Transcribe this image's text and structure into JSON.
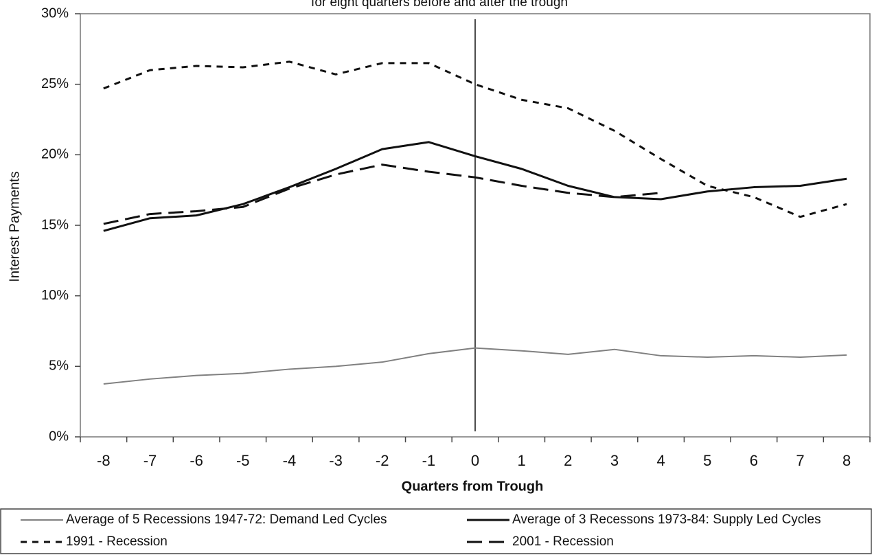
{
  "chart_data": {
    "type": "line",
    "subtitle": "for eight quarters before and after the trough",
    "xlabel": "Quarters from Trough",
    "ylabel": "Interest Payments",
    "categories": [
      "-8",
      "-7",
      "-6",
      "-5",
      "-4",
      "-3",
      "-2",
      "-1",
      "0",
      "1",
      "2",
      "3",
      "4",
      "5",
      "6",
      "7",
      "8"
    ],
    "series": [
      {
        "name": "Average of 5 Recessions 1947-72: Demand Led Cycles",
        "color": "#808080",
        "width": 2,
        "dash": "none",
        "values": [
          3.75,
          4.1,
          4.35,
          4.5,
          4.8,
          5.0,
          5.3,
          5.9,
          6.3,
          6.1,
          5.85,
          6.2,
          5.75,
          5.65,
          5.75,
          5.65,
          5.8
        ]
      },
      {
        "name": "Average of 3 Recessons 1973-84: Supply Led Cycles",
        "color": "#111111",
        "width": 3,
        "dash": "none",
        "values": [
          14.6,
          15.5,
          15.7,
          16.5,
          17.7,
          19.0,
          20.4,
          20.9,
          19.9,
          19.0,
          17.8,
          17.0,
          16.85,
          17.4,
          17.7,
          17.8,
          18.3
        ]
      },
      {
        "name": "1991 - Recession",
        "color": "#111111",
        "width": 3,
        "dash": "9,8",
        "values": [
          24.7,
          26.0,
          26.3,
          26.2,
          26.6,
          25.7,
          26.5,
          26.5,
          25.0,
          23.9,
          23.3,
          21.7,
          19.7,
          17.8,
          17.0,
          15.6,
          16.5
        ]
      },
      {
        "name": "2001 - Recession",
        "color": "#111111",
        "width": 3,
        "dash": "22,10",
        "values": [
          15.1,
          15.8,
          16.0,
          16.3,
          17.6,
          18.6,
          19.3,
          18.8,
          18.4,
          17.8,
          17.3,
          17.0,
          17.3,
          null,
          null,
          null,
          null
        ]
      }
    ],
    "ylim": [
      0,
      30
    ],
    "yticks": [
      {
        "value": 0,
        "label": "0%"
      },
      {
        "value": 5,
        "label": "5%"
      },
      {
        "value": 10,
        "label": "10%"
      },
      {
        "value": 15,
        "label": "15%"
      },
      {
        "value": 20,
        "label": "20%"
      },
      {
        "value": 25,
        "label": "25%"
      },
      {
        "value": 30,
        "label": "30%"
      }
    ],
    "grid": false,
    "legend": "bottom"
  }
}
